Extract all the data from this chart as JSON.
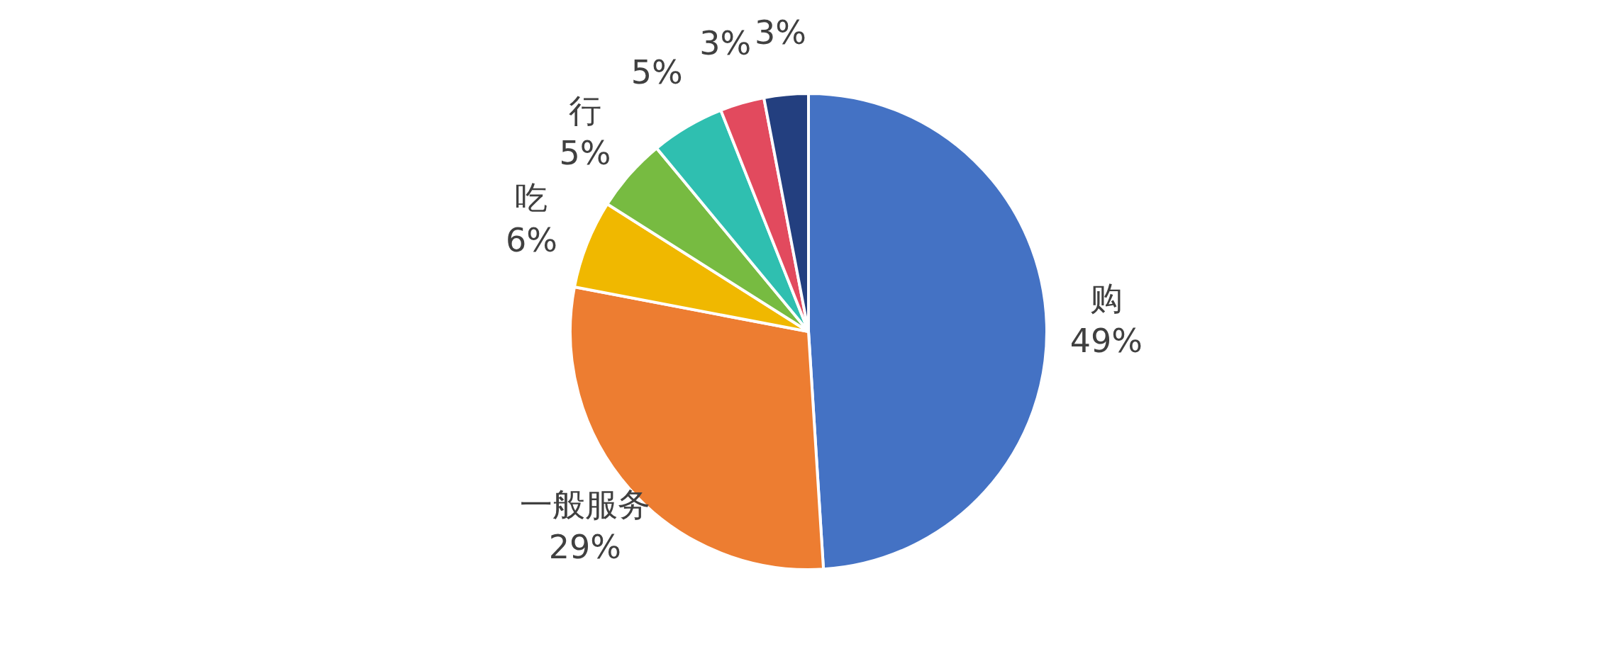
{
  "chart_data": {
    "type": "pie",
    "categories": [
      "购",
      "一般服务",
      "吃",
      "行",
      null,
      null,
      null
    ],
    "values": [
      49,
      29,
      6,
      5,
      5,
      3,
      3
    ],
    "value_labels": [
      "49%",
      "29%",
      "6%",
      "5%",
      "5%",
      "3%",
      "3%"
    ],
    "colors": [
      "#4472c4",
      "#ed7d31",
      "#f0b800",
      "#77bb41",
      "#2fbfb0",
      "#e24a5e",
      "#233f7f"
    ],
    "legend": false
  }
}
